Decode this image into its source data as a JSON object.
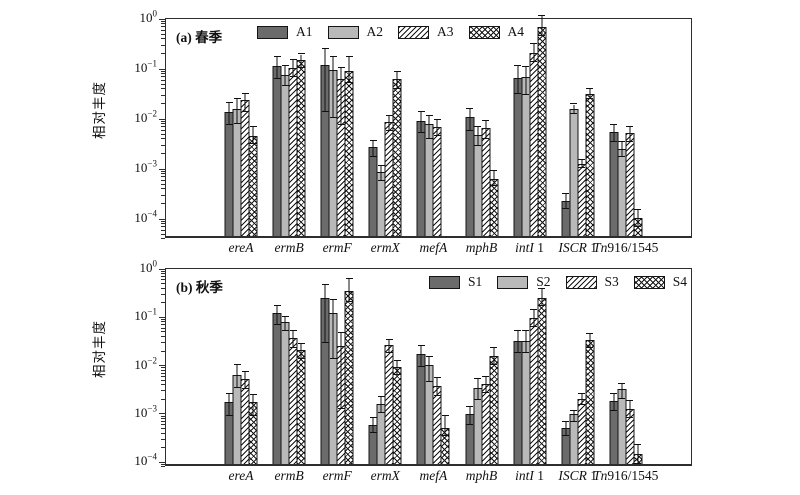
{
  "figure": {
    "background": "#ffffff",
    "accent_colors": {
      "bar_dark": "#6b6b6b",
      "bar_light": "#b9b9b9",
      "hatch_ink": "#161616",
      "axis": "#2e2e2e"
    }
  },
  "chart_data": [
    {
      "type": "bar",
      "panel_label": "(a) 春季",
      "ylabel": "相对丰度",
      "yscale": "log",
      "ylim": [
        4e-05,
        1
      ],
      "ytick_exponents": [
        0,
        -1,
        -2,
        -3,
        -4
      ],
      "legend_position": "top-center-inside",
      "grid": false,
      "categories": [
        {
          "italic": "ereA",
          "roman": ""
        },
        {
          "italic": "ermB",
          "roman": ""
        },
        {
          "italic": "ermF",
          "roman": ""
        },
        {
          "italic": "ermX",
          "roman": ""
        },
        {
          "italic": "mefA",
          "roman": ""
        },
        {
          "italic": "mphB",
          "roman": ""
        },
        {
          "italic": "intI",
          "roman": " 1"
        },
        {
          "italic": "ISCR",
          "roman": " 1"
        },
        {
          "italic": "Tn",
          "roman": "916/1545"
        }
      ],
      "series": [
        {
          "name": "A1",
          "style": "solid-dark",
          "values": [
            0.012,
            0.1,
            0.105,
            0.0024,
            0.008,
            0.0095,
            0.058,
            0.0002,
            0.0048
          ],
          "err_hi": [
            0.018,
            0.15,
            0.22,
            0.0032,
            0.012,
            0.014,
            0.1,
            0.00027,
            0.0065
          ],
          "err_lo": [
            0.0065,
            0.055,
            0.012,
            0.0015,
            0.0045,
            0.005,
            0.027,
            0.00014,
            0.003
          ]
        },
        {
          "name": "A2",
          "style": "solid-light",
          "values": [
            0.014,
            0.065,
            0.085,
            0.00075,
            0.007,
            0.0042,
            0.06,
            0.014,
            0.0022
          ],
          "err_hi": [
            0.022,
            0.1,
            0.15,
            0.001,
            0.01,
            0.006,
            0.095,
            0.017,
            0.003
          ],
          "err_lo": [
            0.007,
            0.04,
            0.009,
            0.0005,
            0.0035,
            0.0025,
            0.026,
            0.011,
            0.0015
          ]
        },
        {
          "name": "A3",
          "style": "diagonal-hatch",
          "values": [
            0.021,
            0.09,
            0.055,
            0.0075,
            0.006,
            0.0058,
            0.18,
            0.0011,
            0.0045
          ],
          "err_hi": [
            0.028,
            0.13,
            0.09,
            0.01,
            0.0085,
            0.008,
            0.27,
            0.0013,
            0.006
          ],
          "err_lo": [
            0.012,
            0.06,
            0.0065,
            0.005,
            0.004,
            0.0035,
            0.12,
            0.0009,
            0.003
          ]
        },
        {
          "name": "A4",
          "style": "cross-hatch",
          "values": [
            0.004,
            0.13,
            0.08,
            0.055,
            null,
            0.00055,
            0.6,
            0.028,
            9e-05
          ],
          "err_hi": [
            0.006,
            0.17,
            0.15,
            0.075,
            null,
            0.0008,
            1.0,
            0.035,
            0.00013
          ],
          "err_lo": [
            0.0027,
            0.09,
            0.045,
            0.035,
            null,
            0.0004,
            0.4,
            0.022,
            6e-05
          ]
        }
      ]
    },
    {
      "type": "bar",
      "panel_label": "(b) 秋季",
      "ylabel": "相对丰度",
      "yscale": "log",
      "ylim": [
        7e-05,
        1
      ],
      "ytick_exponents": [
        0,
        -1,
        -2,
        -3,
        -4
      ],
      "legend_position": "top-right-inside",
      "grid": false,
      "categories": [
        {
          "italic": "ereA",
          "roman": ""
        },
        {
          "italic": "ermB",
          "roman": ""
        },
        {
          "italic": "ermF",
          "roman": ""
        },
        {
          "italic": "ermX",
          "roman": ""
        },
        {
          "italic": "mefA",
          "roman": ""
        },
        {
          "italic": "mphB",
          "roman": ""
        },
        {
          "italic": "intI",
          "roman": " 1"
        },
        {
          "italic": "ISCR",
          "roman": " 1"
        },
        {
          "italic": "Tn",
          "roman": "916/1545"
        }
      ],
      "series": [
        {
          "name": "S1",
          "style": "solid-dark",
          "values": [
            0.0015,
            0.105,
            0.22,
            0.0005,
            0.015,
            0.00085,
            0.028,
            0.00045,
            0.0016
          ],
          "err_hi": [
            0.0022,
            0.15,
            0.4,
            0.0007,
            0.022,
            0.0012,
            0.045,
            0.0006,
            0.0022
          ],
          "err_lo": [
            0.0008,
            0.06,
            0.025,
            0.00035,
            0.008,
            0.0005,
            0.016,
            0.0003,
            0.001
          ]
        },
        {
          "name": "S2",
          "style": "solid-light",
          "values": [
            0.0056,
            0.068,
            0.105,
            0.0014,
            0.009,
            0.003,
            0.028,
            0.00085,
            0.0028
          ],
          "err_hi": [
            0.009,
            0.09,
            0.2,
            0.0019,
            0.013,
            0.0045,
            0.045,
            0.001,
            0.0036
          ],
          "err_lo": [
            0.003,
            0.045,
            0.012,
            0.0009,
            0.004,
            0.0017,
            0.016,
            0.0006,
            0.0018
          ]
        },
        {
          "name": "S3",
          "style": "diagonal-hatch",
          "values": [
            0.0045,
            0.032,
            0.022,
            0.023,
            0.0033,
            0.0036,
            0.085,
            0.0018,
            0.0011
          ],
          "err_hi": [
            0.0065,
            0.045,
            0.042,
            0.03,
            0.0048,
            0.005,
            0.12,
            0.0022,
            0.0016
          ],
          "err_lo": [
            0.0028,
            0.02,
            0.0011,
            0.016,
            0.002,
            0.0024,
            0.055,
            0.0013,
            0.0007
          ]
        },
        {
          "name": "S4",
          "style": "cross-hatch",
          "values": [
            0.0015,
            0.018,
            0.3,
            0.008,
            0.00045,
            0.014,
            0.22,
            0.03,
            0.00013
          ],
          "err_hi": [
            0.0021,
            0.024,
            0.55,
            0.011,
            0.0008,
            0.02,
            0.33,
            0.04,
            0.0002
          ],
          "err_lo": [
            0.0008,
            0.012,
            0.18,
            0.0055,
            0.0003,
            0.009,
            0.15,
            0.02,
            8e-05
          ]
        }
      ]
    }
  ]
}
